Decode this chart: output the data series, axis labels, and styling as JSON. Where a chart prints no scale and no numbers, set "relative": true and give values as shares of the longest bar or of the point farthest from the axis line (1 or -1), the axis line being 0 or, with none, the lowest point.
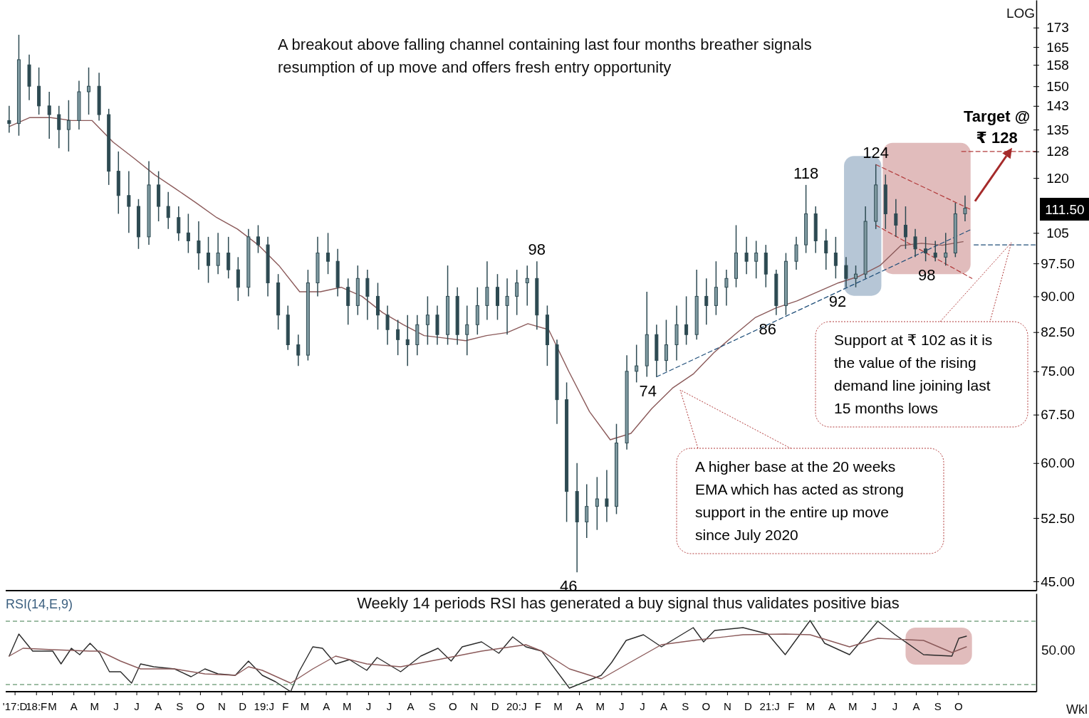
{
  "chart_data": [
    {
      "type": "candlestick",
      "log": true,
      "color": "#2d4a52",
      "tick_labels": "y",
      "xlim": [
        "2017-12-24",
        "2022-01-22"
      ],
      "ylim": [
        44,
        185
      ],
      "yticks": [
        173,
        165,
        158,
        150,
        143,
        135,
        128,
        120,
        105,
        {
          "value": 97.5,
          "label": "97.50"
        },
        {
          "value": 90,
          "label": "90.00"
        },
        {
          "value": 82.5,
          "label": "82.50"
        },
        {
          "value": 75,
          "label": "75.00"
        },
        {
          "value": 67.5,
          "label": "67.50"
        },
        {
          "value": 60,
          "label": "60.00"
        },
        {
          "value": 52.5,
          "label": "52.50"
        },
        {
          "value": 45,
          "label": "45.00"
        }
      ],
      "x": [
        "2017-12-29",
        "2018-01-12",
        "2018-01-27",
        "2018-02-10",
        "2018-02-25",
        "2018-03-11",
        "2018-03-25",
        "2018-04-09",
        "2018-04-23",
        "2018-05-08",
        "2018-05-22",
        "2018-06-05",
        "2018-06-20",
        "2018-07-04",
        "2018-07-19",
        "2018-08-02",
        "2018-08-16",
        "2018-08-31",
        "2018-09-14",
        "2018-09-29",
        "2018-10-13",
        "2018-10-27",
        "2018-11-11",
        "2018-11-25",
        "2018-12-10",
        "2018-12-24",
        "2019-01-07",
        "2019-01-22",
        "2019-02-05",
        "2019-02-20",
        "2019-03-06",
        "2019-03-20",
        "2019-04-04",
        "2019-04-18",
        "2019-05-03",
        "2019-05-17",
        "2019-05-31",
        "2019-06-15",
        "2019-06-29",
        "2019-07-14",
        "2019-07-28",
        "2019-08-11",
        "2019-08-26",
        "2019-09-09",
        "2019-09-24",
        "2019-10-08",
        "2019-10-22",
        "2019-11-06",
        "2019-11-20",
        "2019-12-05",
        "2019-12-19",
        "2020-01-02",
        "2020-01-17",
        "2020-01-31",
        "2020-02-15",
        "2020-02-29",
        "2020-03-14",
        "2020-03-29",
        "2020-04-12",
        "2020-04-27",
        "2020-05-11",
        "2020-05-25",
        "2020-06-09",
        "2020-06-23",
        "2020-07-08",
        "2020-07-22",
        "2020-08-05",
        "2020-08-20",
        "2020-09-03",
        "2020-09-18",
        "2020-10-02",
        "2020-10-16",
        "2020-10-31",
        "2020-11-14",
        "2020-11-29",
        "2020-12-13",
        "2020-12-27",
        "2021-01-11",
        "2021-01-25",
        "2021-02-09",
        "2021-02-23",
        "2021-03-09",
        "2021-03-24",
        "2021-04-07",
        "2021-04-22",
        "2021-05-06",
        "2021-05-20",
        "2021-06-04",
        "2021-06-18",
        "2021-07-03",
        "2021-07-17",
        "2021-07-31",
        "2021-08-15",
        "2021-08-29",
        "2021-09-13",
        "2021-09-27",
        "2021-10-11"
      ],
      "ohlc": [
        [
          138,
          143,
          134,
          137
        ],
        [
          137,
          170,
          133,
          160
        ],
        [
          158,
          162,
          145,
          150
        ],
        [
          150,
          157,
          140,
          143
        ],
        [
          143,
          148,
          132,
          140
        ],
        [
          140,
          143,
          129,
          135
        ],
        [
          135,
          145,
          128,
          138
        ],
        [
          138,
          152,
          135,
          148
        ],
        [
          148,
          157,
          140,
          150
        ],
        [
          150,
          155,
          138,
          140
        ],
        [
          140,
          142,
          118,
          122
        ],
        [
          122,
          128,
          110,
          115
        ],
        [
          115,
          122,
          105,
          112
        ],
        [
          112,
          114,
          101,
          104
        ],
        [
          104,
          125,
          102,
          118
        ],
        [
          118,
          122,
          108,
          112
        ],
        [
          112,
          116,
          106,
          109
        ],
        [
          109,
          112,
          103,
          105
        ],
        [
          105,
          110,
          100,
          103
        ],
        [
          103,
          108,
          96,
          100
        ],
        [
          100,
          104,
          93,
          97
        ],
        [
          97,
          105,
          95,
          100
        ],
        [
          100,
          104,
          94,
          96
        ],
        [
          96,
          99,
          89,
          92
        ],
        [
          92,
          106,
          90,
          104
        ],
        [
          104,
          107,
          100,
          102
        ],
        [
          102,
          104,
          90,
          93
        ],
        [
          93,
          95,
          83,
          86
        ],
        [
          86,
          88,
          79,
          80
        ],
        [
          80,
          82,
          76,
          78
        ],
        [
          78,
          96,
          77,
          93
        ],
        [
          93,
          104,
          90,
          100
        ],
        [
          100,
          105,
          95,
          98
        ],
        [
          98,
          101,
          90,
          92
        ],
        [
          92,
          94,
          84,
          88
        ],
        [
          88,
          97,
          86,
          94
        ],
        [
          94,
          96,
          85,
          90
        ],
        [
          90,
          93,
          83,
          86
        ],
        [
          86,
          88,
          80,
          83
        ],
        [
          83,
          85,
          78,
          81
        ],
        [
          81,
          86,
          76,
          80
        ],
        [
          80,
          86,
          78,
          84
        ],
        [
          84,
          90,
          80,
          86
        ],
        [
          86,
          88,
          80,
          82
        ],
        [
          82,
          97,
          80,
          90
        ],
        [
          90,
          92,
          80,
          82
        ],
        [
          82,
          88,
          78,
          84
        ],
        [
          84,
          92,
          82,
          88
        ],
        [
          88,
          98,
          85,
          92
        ],
        [
          92,
          95,
          85,
          88
        ],
        [
          88,
          94,
          82,
          90
        ],
        [
          90,
          96,
          86,
          93
        ],
        [
          93,
          97,
          88,
          94
        ],
        [
          94,
          98,
          83,
          86
        ],
        [
          86,
          88,
          76,
          80
        ],
        [
          80,
          81,
          66,
          70
        ],
        [
          70,
          73,
          52,
          56
        ],
        [
          56,
          60,
          46,
          52
        ],
        [
          52,
          57,
          50,
          54
        ],
        [
          54,
          58,
          51,
          55
        ],
        [
          55,
          59,
          52,
          54
        ],
        [
          54,
          66,
          53,
          63
        ],
        [
          63,
          78,
          62,
          75
        ],
        [
          75,
          80,
          73,
          76
        ],
        [
          76,
          91,
          74,
          82
        ],
        [
          82,
          84,
          74,
          77
        ],
        [
          77,
          85,
          75,
          80
        ],
        [
          80,
          88,
          77,
          84
        ],
        [
          84,
          90,
          80,
          82
        ],
        [
          82,
          96,
          81,
          90
        ],
        [
          90,
          94,
          84,
          88
        ],
        [
          88,
          98,
          86,
          92
        ],
        [
          92,
          96,
          88,
          94
        ],
        [
          94,
          107,
          92,
          100
        ],
        [
          100,
          104,
          95,
          98
        ],
        [
          98,
          103,
          94,
          100
        ],
        [
          100,
          102,
          92,
          95
        ],
        [
          95,
          96,
          86,
          88
        ],
        [
          88,
          100,
          86,
          98
        ],
        [
          98,
          104,
          96,
          102
        ],
        [
          102,
          118,
          100,
          110
        ],
        [
          110,
          112,
          100,
          103
        ],
        [
          103,
          106,
          96,
          100
        ],
        [
          100,
          104,
          94,
          97
        ],
        [
          97,
          99,
          92,
          94
        ],
        [
          94,
          97,
          92,
          95
        ],
        [
          95,
          112,
          94,
          108
        ],
        [
          108,
          124,
          106,
          118
        ],
        [
          118,
          121,
          106,
          110
        ],
        [
          110,
          114,
          104,
          107
        ],
        [
          107,
          112,
          101,
          104
        ],
        [
          104,
          106,
          99,
          101
        ],
        [
          101,
          104,
          98,
          100
        ],
        [
          100,
          103,
          98,
          99
        ],
        [
          99,
          105,
          97,
          100
        ],
        [
          100,
          113,
          99,
          110
        ],
        [
          110,
          115,
          108,
          111.5
        ]
      ],
      "series": [
        {
          "type": "line",
          "color": "#8b5a5a",
          "x": [
            "2017-12-29",
            "2018-01-28",
            "2018-02-27",
            "2018-03-29",
            "2018-04-28",
            "2018-05-28",
            "2018-06-27",
            "2018-07-27",
            "2018-08-26",
            "2018-09-25",
            "2018-10-25",
            "2018-11-24",
            "2018-12-24",
            "2019-01-23",
            "2019-02-22",
            "2019-03-24",
            "2019-04-23",
            "2019-05-23",
            "2019-06-22",
            "2019-07-22",
            "2019-08-21",
            "2019-09-20",
            "2019-10-20",
            "2019-11-19",
            "2019-12-19",
            "2020-01-18",
            "2020-02-17",
            "2020-03-17",
            "2020-04-16",
            "2020-05-16",
            "2020-06-15",
            "2020-07-15",
            "2020-08-14",
            "2020-09-13",
            "2020-10-13",
            "2020-11-12",
            "2020-12-12",
            "2021-01-11",
            "2021-02-10",
            "2021-03-12",
            "2021-04-11",
            "2021-05-11",
            "2021-06-10",
            "2021-07-10",
            "2021-08-09",
            "2021-09-08",
            "2021-10-08"
          ],
          "values": [
            136,
            139,
            139,
            138,
            138,
            131,
            126,
            121,
            117,
            113,
            109,
            106,
            102,
            97,
            91,
            91,
            92,
            90,
            86.5,
            84,
            81.8,
            81.3,
            80.8,
            81.8,
            82.4,
            84.2,
            83,
            75,
            68,
            63.5,
            64.5,
            68.5,
            72,
            74.5,
            78.5,
            82,
            85.5,
            87.5,
            89,
            91,
            93,
            94.5,
            97,
            101.8,
            102.4,
            101.9,
            102.8
          ]
        },
        {
          "type": "line",
          "color": "#1f4e79",
          "line_style": "dashed",
          "x": [
            "2020-07-22",
            "2021-10-21"
          ],
          "values": [
            74,
            106
          ]
        },
        {
          "type": "line",
          "color": "#b23b3b",
          "line_style": "dashed",
          "x": [
            "2021-06-04",
            "2021-10-21"
          ],
          "values": [
            124,
            111
          ]
        },
        {
          "type": "line",
          "color": "#b23b3b",
          "line_style": "dashed",
          "x": [
            "2021-06-04",
            "2021-10-21"
          ],
          "values": [
            107,
            94
          ]
        },
        {
          "type": "line",
          "color": "#b23b3b",
          "line_style": "dashed",
          "x": [
            "2021-10-06",
            "2022-01-22"
          ],
          "values": [
            128,
            128
          ]
        },
        {
          "type": "line",
          "color": "#1f4e79",
          "line_style": "dashed",
          "x": [
            "2021-10-24",
            "2022-01-22"
          ],
          "values": [
            102,
            102
          ]
        }
      ],
      "bands": [
        {
          "axis": "x",
          "from": "2021-04-19",
          "to": "2021-06-12",
          "color": "#a9bccf"
        },
        {
          "axis": "x",
          "from": "2021-06-14",
          "to": "2021-10-19",
          "color": "#dcb0b0"
        }
      ],
      "annotations": [
        "A breakout above falling channel containing last four months breather signals resumption of up move and offers fresh entry opportunity",
        "LOG",
        "Support at ₹ 102 as it is the value of the rising demand line joining last 15 months lows",
        "A higher base at the 20 weeks EMA which has acted as strong support in the entire up move since July 2020",
        {
          "text": "124",
          "x": "2021-06-04",
          "y": 124
        },
        {
          "text": "118",
          "x": "2021-02-23",
          "y": 118
        },
        {
          "text": "98",
          "x": "2020-01-31",
          "y": 98
        },
        {
          "text": "46",
          "x": "2020-03-29",
          "y": 46
        },
        {
          "text": "74",
          "x": "2020-07-22",
          "y": 74
        },
        {
          "text": "86",
          "x": "2021-01-11",
          "y": 86
        },
        {
          "text": "92",
          "x": "2021-04-22",
          "y": 92
        },
        {
          "text": "98",
          "x": "2021-08-29",
          "y": 98
        },
        {
          "text": "Target @ ₹ 128",
          "x": "2021-11-26",
          "y": 128
        },
        "111.50"
      ]
    },
    {
      "type": "line",
      "title": "RSI(14,E,9)",
      "relative": true,
      "xlim": [
        "2017-12-24",
        "2022-01-22"
      ],
      "xticks": [
        {
          "value": "2018-01-06",
          "label": "'17:D"
        },
        {
          "value": "2018-02-06",
          "label": "18:F"
        },
        {
          "value": "2018-03-01",
          "label": "M"
        },
        {
          "value": "2018-04-01",
          "label": "A"
        },
        {
          "value": "2018-05-01",
          "label": "M"
        },
        {
          "value": "2018-06-01",
          "label": "J"
        },
        {
          "value": "2018-07-01",
          "label": "J"
        },
        {
          "value": "2018-08-01",
          "label": "A"
        },
        {
          "value": "2018-09-01",
          "label": "S"
        },
        {
          "value": "2018-10-01",
          "label": "O"
        },
        {
          "value": "2018-11-01",
          "label": "N"
        },
        {
          "value": "2018-12-01",
          "label": "D"
        },
        {
          "value": "2019-01-01",
          "label": "19:J"
        },
        {
          "value": "2019-02-01",
          "label": "F"
        },
        {
          "value": "2019-03-01",
          "label": "M"
        },
        {
          "value": "2019-04-01",
          "label": "A"
        },
        {
          "value": "2019-05-01",
          "label": "M"
        },
        {
          "value": "2019-06-01",
          "label": "J"
        },
        {
          "value": "2019-07-01",
          "label": "J"
        },
        {
          "value": "2019-08-01",
          "label": "A"
        },
        {
          "value": "2019-09-01",
          "label": "S"
        },
        {
          "value": "2019-10-01",
          "label": "O"
        },
        {
          "value": "2019-11-01",
          "label": "N"
        },
        {
          "value": "2019-12-01",
          "label": "D"
        },
        {
          "value": "2020-01-01",
          "label": "20:J"
        },
        {
          "value": "2020-02-01",
          "label": "F"
        },
        {
          "value": "2020-03-01",
          "label": "M"
        },
        {
          "value": "2020-04-01",
          "label": "A"
        },
        {
          "value": "2020-05-01",
          "label": "M"
        },
        {
          "value": "2020-06-01",
          "label": "J"
        },
        {
          "value": "2020-07-01",
          "label": "J"
        },
        {
          "value": "2020-08-01",
          "label": "A"
        },
        {
          "value": "2020-09-01",
          "label": "S"
        },
        {
          "value": "2020-10-01",
          "label": "O"
        },
        {
          "value": "2020-11-01",
          "label": "N"
        },
        {
          "value": "2020-12-01",
          "label": "D"
        },
        {
          "value": "2021-01-01",
          "label": "21:J"
        },
        {
          "value": "2021-02-01",
          "label": "F"
        },
        {
          "value": "2021-03-01",
          "label": "M"
        },
        {
          "value": "2021-04-01",
          "label": "A"
        },
        {
          "value": "2021-05-01",
          "label": "M"
        },
        {
          "value": "2021-06-01",
          "label": "J"
        },
        {
          "value": "2021-07-01",
          "label": "J"
        },
        {
          "value": "2021-08-01",
          "label": "A"
        },
        {
          "value": "2021-09-01",
          "label": "S"
        },
        {
          "value": "2021-10-01",
          "label": "O"
        }
      ],
      "series": [
        {
          "color": "#2b2b2b",
          "x": [
            "2017-12-29",
            "2018-01-12",
            "2018-02-01",
            "2018-03-02",
            "2018-03-14",
            "2018-03-29",
            "2018-04-10",
            "2018-04-25",
            "2018-05-09",
            "2018-05-23",
            "2018-06-08",
            "2018-06-24",
            "2018-07-07",
            "2018-07-26",
            "2018-08-25",
            "2018-09-18",
            "2018-10-08",
            "2018-10-27",
            "2018-11-21",
            "2018-12-10",
            "2018-12-30",
            "2019-01-18",
            "2019-02-09",
            "2019-02-21",
            "2019-03-13",
            "2019-03-27",
            "2019-04-15",
            "2019-05-05",
            "2019-05-30",
            "2019-06-14",
            "2019-07-18",
            "2019-08-16",
            "2019-09-10",
            "2019-09-29",
            "2019-10-15",
            "2019-11-12",
            "2019-12-07",
            "2019-12-27",
            "2020-01-15",
            "2020-02-07",
            "2020-03-18",
            "2020-05-03",
            "2020-05-18",
            "2020-06-08",
            "2020-07-03",
            "2020-07-29",
            "2020-09-13",
            "2020-09-28",
            "2020-10-14",
            "2020-11-24",
            "2020-12-30",
            "2021-01-24",
            "2021-03-01",
            "2021-03-22",
            "2021-04-27",
            "2021-06-07",
            "2021-07-02",
            "2021-08-12",
            "2021-09-22",
            "2021-10-02",
            "2021-10-13"
          ],
          "values": [
            0.5,
            0.81,
            0.57,
            0.57,
            0.39,
            0.61,
            0.52,
            0.68,
            0.54,
            0.28,
            0.28,
            0.12,
            0.39,
            0.35,
            0.32,
            0.21,
            0.32,
            0.25,
            0.23,
            0.43,
            0.23,
            0.14,
            0,
            0.28,
            0.63,
            0.61,
            0.39,
            0.45,
            0.3,
            0.48,
            0.28,
            0.5,
            0.61,
            0.43,
            0.63,
            0.7,
            0.54,
            0.77,
            0.63,
            0.57,
            0.05,
            0.23,
            0.41,
            0.72,
            0.8,
            0.63,
            0.9,
            0.7,
            0.86,
            0.9,
            0.81,
            0.52,
            1,
            0.68,
            0.52,
            0.99,
            0.8,
            0.52,
            0.5,
            0.75,
            0.78
          ]
        },
        {
          "color": "#8b5a5a",
          "x": [
            "2017-12-29",
            "2018-01-18",
            "2018-03-02",
            "2018-04-25",
            "2018-05-09",
            "2018-06-08",
            "2018-07-07",
            "2018-08-25",
            "2018-10-08",
            "2018-11-21",
            "2018-12-10",
            "2018-12-30",
            "2019-02-09",
            "2019-03-13",
            "2019-04-15",
            "2019-05-30",
            "2019-07-18",
            "2019-09-10",
            "2019-11-12",
            "2020-01-15",
            "2020-02-07",
            "2020-03-18",
            "2020-05-03",
            "2020-06-08",
            "2020-07-29",
            "2020-09-13",
            "2020-11-24",
            "2021-01-24",
            "2021-03-01",
            "2021-04-27",
            "2021-06-07",
            "2021-08-12",
            "2021-09-22",
            "2021-10-13"
          ],
          "values": [
            0.5,
            0.61,
            0.59,
            0.57,
            0.57,
            0.43,
            0.32,
            0.32,
            0.25,
            0.23,
            0.35,
            0.3,
            0.12,
            0.32,
            0.5,
            0.39,
            0.35,
            0.45,
            0.57,
            0.66,
            0.57,
            0.32,
            0.18,
            0.38,
            0.66,
            0.72,
            0.8,
            0.81,
            0.8,
            0.63,
            0.75,
            0.72,
            0.55,
            0.63
          ]
        }
      ],
      "ref_lines": [
        {
          "axis": "y",
          "value": 0.99,
          "color": "#3d7a4a",
          "line_style": "dashed"
        },
        {
          "axis": "y",
          "value": 0.1,
          "color": "#3d7a4a",
          "line_style": "dashed"
        }
      ],
      "bands": [
        {
          "axis": "x",
          "from": "2021-07-17",
          "to": "2021-10-21",
          "color": "#dcb0b0"
        }
      ],
      "annotations": [
        "Weekly 14 periods RSI has generated a buy signal thus validates positive bias",
        "Wkl",
        "50.00"
      ]
    }
  ]
}
